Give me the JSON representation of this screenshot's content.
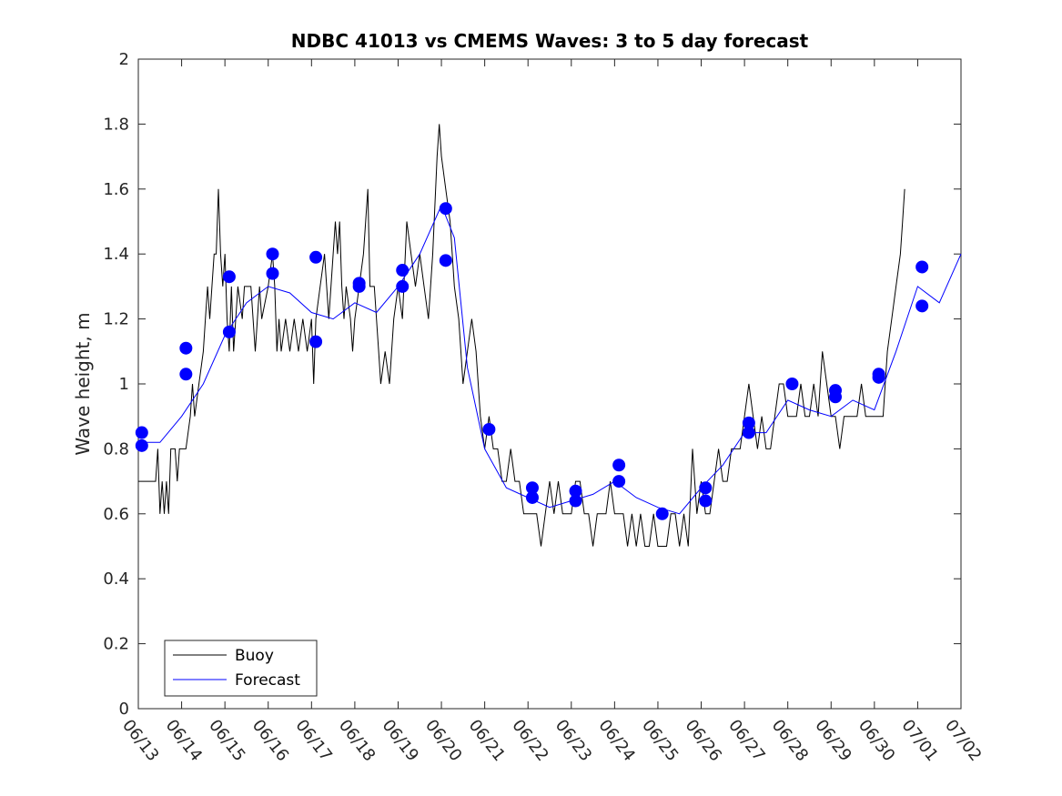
{
  "chart_data": {
    "type": "line",
    "title": "NDBC 41013 vs CMEMS Waves: 3 to 5 day forecast",
    "xlabel": "",
    "ylabel": "Wave height, m",
    "xlim": [
      "06/13",
      "07/02"
    ],
    "ylim": [
      0,
      2
    ],
    "x_ticks": [
      "06/13",
      "06/14",
      "06/15",
      "06/16",
      "06/17",
      "06/18",
      "06/19",
      "06/20",
      "06/21",
      "06/22",
      "06/23",
      "06/24",
      "06/25",
      "06/26",
      "06/27",
      "06/28",
      "06/29",
      "06/30",
      "07/01",
      "07/02"
    ],
    "y_ticks": [
      "0",
      "0.2",
      "0.4",
      "0.6",
      "0.8",
      "1",
      "1.2",
      "1.4",
      "1.6",
      "1.8",
      "2"
    ],
    "legend": {
      "position": "bottom-left",
      "entries": [
        "Buoy",
        "Forecast"
      ]
    },
    "colors": {
      "buoy": "#000000",
      "forecast": "#0000ff"
    },
    "series": [
      {
        "name": "Buoy",
        "x_unit": "days since 06/13",
        "points": [
          [
            0,
            0.7
          ],
          [
            0.4,
            0.7
          ],
          [
            0.45,
            0.8
          ],
          [
            0.5,
            0.6
          ],
          [
            0.55,
            0.7
          ],
          [
            0.6,
            0.6
          ],
          [
            0.65,
            0.7
          ],
          [
            0.7,
            0.6
          ],
          [
            0.75,
            0.8
          ],
          [
            0.85,
            0.8
          ],
          [
            0.9,
            0.7
          ],
          [
            0.95,
            0.8
          ],
          [
            1.1,
            0.8
          ],
          [
            1.2,
            0.9
          ],
          [
            1.25,
            1.0
          ],
          [
            1.3,
            0.9
          ],
          [
            1.4,
            1.0
          ],
          [
            1.5,
            1.1
          ],
          [
            1.55,
            1.2
          ],
          [
            1.6,
            1.3
          ],
          [
            1.65,
            1.2
          ],
          [
            1.7,
            1.3
          ],
          [
            1.75,
            1.4
          ],
          [
            1.8,
            1.4
          ],
          [
            1.85,
            1.6
          ],
          [
            1.9,
            1.4
          ],
          [
            1.95,
            1.3
          ],
          [
            2.0,
            1.4
          ],
          [
            2.05,
            1.2
          ],
          [
            2.1,
            1.1
          ],
          [
            2.15,
            1.3
          ],
          [
            2.2,
            1.1
          ],
          [
            2.3,
            1.3
          ],
          [
            2.4,
            1.2
          ],
          [
            2.45,
            1.3
          ],
          [
            2.6,
            1.3
          ],
          [
            2.7,
            1.1
          ],
          [
            2.8,
            1.3
          ],
          [
            2.85,
            1.2
          ],
          [
            3.0,
            1.3
          ],
          [
            3.1,
            1.4
          ],
          [
            3.15,
            1.3
          ],
          [
            3.2,
            1.1
          ],
          [
            3.25,
            1.2
          ],
          [
            3.3,
            1.1
          ],
          [
            3.4,
            1.2
          ],
          [
            3.5,
            1.1
          ],
          [
            3.6,
            1.2
          ],
          [
            3.7,
            1.1
          ],
          [
            3.8,
            1.2
          ],
          [
            3.9,
            1.1
          ],
          [
            4.0,
            1.2
          ],
          [
            4.05,
            1.0
          ],
          [
            4.1,
            1.2
          ],
          [
            4.2,
            1.3
          ],
          [
            4.3,
            1.4
          ],
          [
            4.4,
            1.2
          ],
          [
            4.5,
            1.4
          ],
          [
            4.55,
            1.5
          ],
          [
            4.6,
            1.4
          ],
          [
            4.65,
            1.5
          ],
          [
            4.7,
            1.3
          ],
          [
            4.75,
            1.2
          ],
          [
            4.8,
            1.3
          ],
          [
            4.9,
            1.2
          ],
          [
            4.95,
            1.1
          ],
          [
            5.0,
            1.2
          ],
          [
            5.1,
            1.3
          ],
          [
            5.2,
            1.4
          ],
          [
            5.3,
            1.6
          ],
          [
            5.35,
            1.3
          ],
          [
            5.45,
            1.3
          ],
          [
            5.55,
            1.1
          ],
          [
            5.6,
            1.0
          ],
          [
            5.7,
            1.1
          ],
          [
            5.8,
            1.0
          ],
          [
            5.9,
            1.2
          ],
          [
            6.0,
            1.3
          ],
          [
            6.1,
            1.2
          ],
          [
            6.2,
            1.5
          ],
          [
            6.3,
            1.4
          ],
          [
            6.4,
            1.3
          ],
          [
            6.5,
            1.4
          ],
          [
            6.6,
            1.3
          ],
          [
            6.7,
            1.2
          ],
          [
            6.8,
            1.4
          ],
          [
            6.9,
            1.7
          ],
          [
            6.95,
            1.8
          ],
          [
            7.0,
            1.7
          ],
          [
            7.1,
            1.6
          ],
          [
            7.2,
            1.5
          ],
          [
            7.3,
            1.3
          ],
          [
            7.4,
            1.2
          ],
          [
            7.5,
            1.0
          ],
          [
            7.6,
            1.1
          ],
          [
            7.7,
            1.2
          ],
          [
            7.8,
            1.1
          ],
          [
            7.9,
            0.9
          ],
          [
            8.0,
            0.8
          ],
          [
            8.1,
            0.9
          ],
          [
            8.2,
            0.8
          ],
          [
            8.3,
            0.8
          ],
          [
            8.4,
            0.7
          ],
          [
            8.5,
            0.7
          ],
          [
            8.6,
            0.8
          ],
          [
            8.7,
            0.7
          ],
          [
            8.8,
            0.7
          ],
          [
            8.9,
            0.6
          ],
          [
            9.0,
            0.6
          ],
          [
            9.1,
            0.6
          ],
          [
            9.2,
            0.6
          ],
          [
            9.3,
            0.5
          ],
          [
            9.4,
            0.6
          ],
          [
            9.5,
            0.7
          ],
          [
            9.6,
            0.6
          ],
          [
            9.7,
            0.7
          ],
          [
            9.8,
            0.6
          ],
          [
            9.9,
            0.6
          ],
          [
            10.0,
            0.6
          ],
          [
            10.1,
            0.7
          ],
          [
            10.2,
            0.7
          ],
          [
            10.3,
            0.6
          ],
          [
            10.4,
            0.6
          ],
          [
            10.5,
            0.5
          ],
          [
            10.6,
            0.6
          ],
          [
            10.7,
            0.6
          ],
          [
            10.8,
            0.6
          ],
          [
            10.9,
            0.7
          ],
          [
            11.0,
            0.6
          ],
          [
            11.1,
            0.6
          ],
          [
            11.2,
            0.6
          ],
          [
            11.3,
            0.5
          ],
          [
            11.4,
            0.6
          ],
          [
            11.5,
            0.5
          ],
          [
            11.6,
            0.6
          ],
          [
            11.7,
            0.5
          ],
          [
            11.8,
            0.5
          ],
          [
            11.9,
            0.6
          ],
          [
            12.0,
            0.5
          ],
          [
            12.1,
            0.5
          ],
          [
            12.2,
            0.5
          ],
          [
            12.3,
            0.6
          ],
          [
            12.4,
            0.6
          ],
          [
            12.5,
            0.5
          ],
          [
            12.6,
            0.6
          ],
          [
            12.7,
            0.5
          ],
          [
            12.8,
            0.8
          ],
          [
            12.9,
            0.6
          ],
          [
            13.0,
            0.7
          ],
          [
            13.1,
            0.6
          ],
          [
            13.2,
            0.6
          ],
          [
            13.3,
            0.7
          ],
          [
            13.4,
            0.8
          ],
          [
            13.5,
            0.7
          ],
          [
            13.6,
            0.7
          ],
          [
            13.7,
            0.8
          ],
          [
            13.8,
            0.8
          ],
          [
            13.9,
            0.8
          ],
          [
            14.0,
            0.9
          ],
          [
            14.1,
            1.0
          ],
          [
            14.2,
            0.9
          ],
          [
            14.3,
            0.8
          ],
          [
            14.4,
            0.9
          ],
          [
            14.5,
            0.8
          ],
          [
            14.6,
            0.8
          ],
          [
            14.7,
            0.9
          ],
          [
            14.8,
            1.0
          ],
          [
            14.9,
            1.0
          ],
          [
            15.0,
            0.9
          ],
          [
            15.1,
            0.9
          ],
          [
            15.2,
            0.9
          ],
          [
            15.3,
            1.0
          ],
          [
            15.4,
            0.9
          ],
          [
            15.5,
            0.9
          ],
          [
            15.6,
            1.0
          ],
          [
            15.7,
            0.9
          ],
          [
            15.8,
            1.1
          ],
          [
            15.9,
            1.0
          ],
          [
            16.0,
            0.9
          ],
          [
            16.1,
            0.9
          ],
          [
            16.2,
            0.8
          ],
          [
            16.3,
            0.9
          ],
          [
            16.4,
            0.9
          ],
          [
            16.5,
            0.9
          ],
          [
            16.6,
            0.9
          ],
          [
            16.7,
            1.0
          ],
          [
            16.8,
            0.9
          ],
          [
            16.9,
            0.9
          ],
          [
            17.0,
            0.9
          ],
          [
            17.1,
            0.9
          ],
          [
            17.2,
            0.9
          ],
          [
            17.3,
            1.1
          ],
          [
            17.4,
            1.2
          ],
          [
            17.5,
            1.3
          ],
          [
            17.6,
            1.4
          ],
          [
            17.65,
            1.5
          ],
          [
            17.7,
            1.6
          ]
        ]
      },
      {
        "name": "Forecast",
        "x_unit": "days since 06/13",
        "points": [
          [
            0,
            0.82
          ],
          [
            0.5,
            0.82
          ],
          [
            1.0,
            0.9
          ],
          [
            1.5,
            1.0
          ],
          [
            2.0,
            1.15
          ],
          [
            2.5,
            1.25
          ],
          [
            3.0,
            1.3
          ],
          [
            3.5,
            1.28
          ],
          [
            4.0,
            1.22
          ],
          [
            4.5,
            1.2
          ],
          [
            5.0,
            1.25
          ],
          [
            5.5,
            1.22
          ],
          [
            6.0,
            1.3
          ],
          [
            6.5,
            1.4
          ],
          [
            7.0,
            1.55
          ],
          [
            7.3,
            1.45
          ],
          [
            7.6,
            1.05
          ],
          [
            8.0,
            0.8
          ],
          [
            8.5,
            0.68
          ],
          [
            9.0,
            0.65
          ],
          [
            9.5,
            0.62
          ],
          [
            10.0,
            0.64
          ],
          [
            10.5,
            0.66
          ],
          [
            11.0,
            0.7
          ],
          [
            11.5,
            0.65
          ],
          [
            12.0,
            0.62
          ],
          [
            12.5,
            0.6
          ],
          [
            13.0,
            0.68
          ],
          [
            13.5,
            0.75
          ],
          [
            14.0,
            0.85
          ],
          [
            14.5,
            0.85
          ],
          [
            15.0,
            0.95
          ],
          [
            15.5,
            0.92
          ],
          [
            16.0,
            0.9
          ],
          [
            16.5,
            0.95
          ],
          [
            17.0,
            0.92
          ],
          [
            17.5,
            1.1
          ],
          [
            18.0,
            1.3
          ],
          [
            18.5,
            1.25
          ],
          [
            19.0,
            1.4
          ]
        ]
      }
    ],
    "forecast_init_markers": [
      [
        0.08,
        0.85
      ],
      [
        0.08,
        0.81
      ],
      [
        1.1,
        1.11
      ],
      [
        1.1,
        1.03
      ],
      [
        2.1,
        1.33
      ],
      [
        2.1,
        1.16
      ],
      [
        3.1,
        1.4
      ],
      [
        3.1,
        1.34
      ],
      [
        4.1,
        1.39
      ],
      [
        4.1,
        1.13
      ],
      [
        5.1,
        1.31
      ],
      [
        5.1,
        1.3
      ],
      [
        6.1,
        1.35
      ],
      [
        6.1,
        1.3
      ],
      [
        7.1,
        1.54
      ],
      [
        7.1,
        1.38
      ],
      [
        8.1,
        0.86
      ],
      [
        9.1,
        0.68
      ],
      [
        9.1,
        0.65
      ],
      [
        10.1,
        0.67
      ],
      [
        10.1,
        0.64
      ],
      [
        11.1,
        0.75
      ],
      [
        11.1,
        0.7
      ],
      [
        12.1,
        0.6
      ],
      [
        13.1,
        0.68
      ],
      [
        13.1,
        0.64
      ],
      [
        14.1,
        0.88
      ],
      [
        14.1,
        0.85
      ],
      [
        15.1,
        1.0
      ],
      [
        16.1,
        0.98
      ],
      [
        16.1,
        0.96
      ],
      [
        17.1,
        1.03
      ],
      [
        17.1,
        1.02
      ],
      [
        18.1,
        1.36
      ],
      [
        18.1,
        1.24
      ]
    ]
  }
}
